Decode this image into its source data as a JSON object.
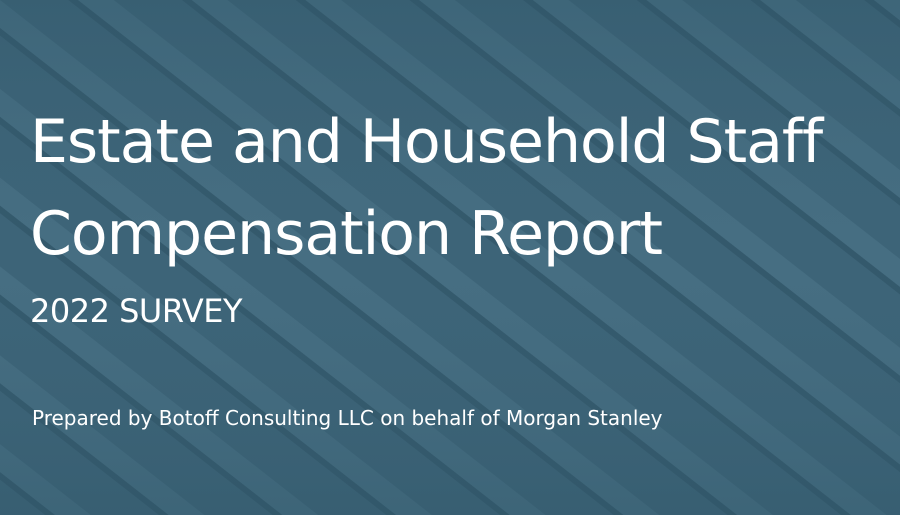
{
  "cover": {
    "title_lines": [
      "Estate and Household Staff",
      "Compensation Report"
    ],
    "subtitle": "2022 SURVEY",
    "prepared_by": "Prepared by Botoff Consulting LLC on behalf of Morgan Stanley"
  }
}
